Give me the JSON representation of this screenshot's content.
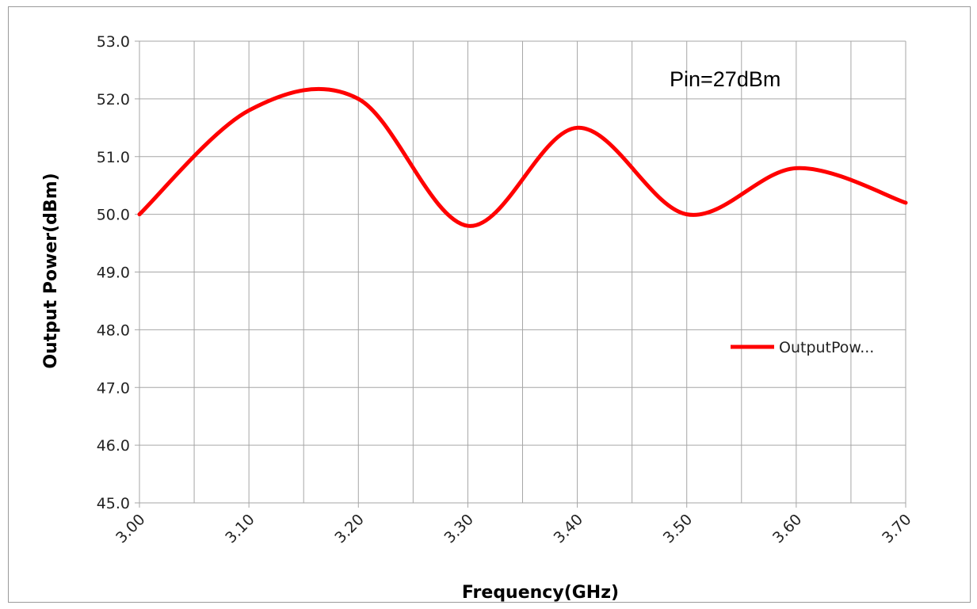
{
  "chart_data": {
    "type": "line",
    "title": "",
    "annotation": "Pin=27dBm",
    "xlabel": "Frequency(GHz)",
    "ylabel": "Output Power(dBm)",
    "xlim": [
      3.0,
      3.7
    ],
    "ylim": [
      45.0,
      53.0
    ],
    "x_ticks": [
      "3.00",
      "3.10",
      "3.20",
      "3.30",
      "3.40",
      "3.50",
      "3.60",
      "3.70"
    ],
    "y_ticks": [
      "45.0",
      "46.0",
      "47.0",
      "48.0",
      "49.0",
      "50.0",
      "51.0",
      "52.0",
      "53.0"
    ],
    "grid": true,
    "legend_placement": "right",
    "series": [
      {
        "name": "OutputPow...",
        "color": "#ff0000",
        "x": [
          3.0,
          3.1,
          3.2,
          3.3,
          3.4,
          3.5,
          3.6,
          3.7
        ],
        "y": [
          50.0,
          51.8,
          52.0,
          49.8,
          51.5,
          50.0,
          50.8,
          50.2
        ]
      }
    ]
  }
}
